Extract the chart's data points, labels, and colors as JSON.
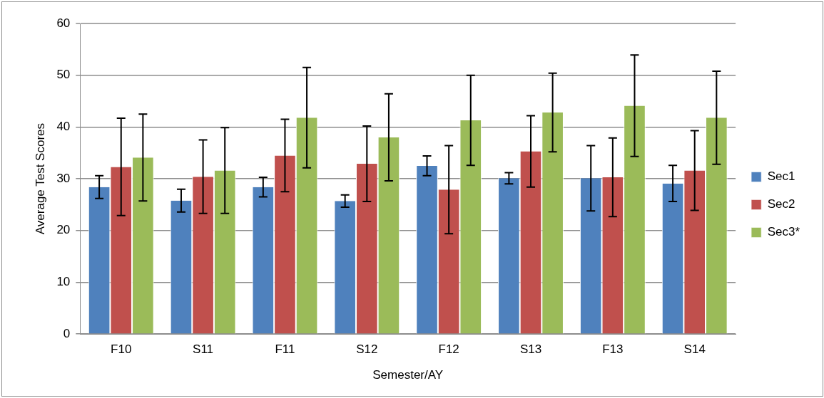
{
  "chart_data": {
    "type": "bar",
    "xlabel": "Semester/AY",
    "ylabel": "Average Test Scores",
    "categories": [
      "F10",
      "S11",
      "F11",
      "S12",
      "F12",
      "S13",
      "F13",
      "S14"
    ],
    "series": [
      {
        "name": "Sec1",
        "color": "#4f81bd",
        "values": [
          28.4,
          25.8,
          28.4,
          25.7,
          32.5,
          30.1,
          30.1,
          29.1
        ],
        "errors": [
          2.2,
          2.2,
          1.9,
          1.2,
          1.9,
          1.1,
          6.3,
          3.5
        ]
      },
      {
        "name": "Sec2",
        "color": "#c0504d",
        "values": [
          32.3,
          30.4,
          34.5,
          32.9,
          27.9,
          35.3,
          30.3,
          31.6
        ],
        "errors": [
          9.4,
          7.1,
          7.0,
          7.3,
          8.5,
          6.9,
          7.6,
          7.7
        ]
      },
      {
        "name": "Sec3*",
        "color": "#9bbb59",
        "values": [
          34.1,
          31.6,
          41.8,
          38.0,
          41.3,
          42.8,
          44.1,
          41.8
        ],
        "errors": [
          8.4,
          8.3,
          9.7,
          8.4,
          8.7,
          7.6,
          9.8,
          9.0
        ]
      }
    ],
    "ylim": [
      0,
      60
    ],
    "yticks": [
      0,
      10,
      20,
      30,
      40,
      50,
      60
    ],
    "grid": "y",
    "legend": "right"
  }
}
